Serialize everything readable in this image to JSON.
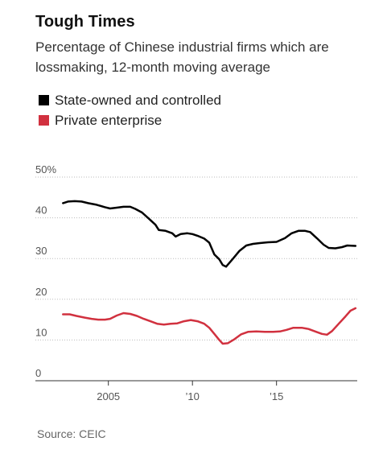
{
  "title": "Tough Times",
  "subtitle": "Percentage of Chinese industrial firms which are lossmaking, 12-month moving average",
  "source": "Source: CEIC",
  "chart_data": {
    "type": "line",
    "title": "Tough Times",
    "subtitle": "Percentage of Chinese industrial firms which are lossmaking, 12-month moving average",
    "xlabel": "",
    "ylabel": "",
    "xlim": [
      2002.0,
      2019.8
    ],
    "ylim": [
      0,
      50
    ],
    "grid": true,
    "legend": "top-left",
    "y_ticks": [
      {
        "value": 50,
        "label": "50%"
      },
      {
        "value": 40,
        "label": "40"
      },
      {
        "value": 30,
        "label": "30"
      },
      {
        "value": 20,
        "label": "20"
      },
      {
        "value": 10,
        "label": "10"
      },
      {
        "value": 0,
        "label": "0"
      }
    ],
    "x_ticks": [
      {
        "value": 2005,
        "label": "2005"
      },
      {
        "value": 2010,
        "label": "’10"
      },
      {
        "value": 2015,
        "label": "’15"
      }
    ],
    "series": [
      {
        "name": "State-owned and controlled",
        "color": "#000000",
        "points": [
          [
            2002.3,
            43.6
          ],
          [
            2002.6,
            44.0
          ],
          [
            2003.0,
            44.1
          ],
          [
            2003.4,
            44.0
          ],
          [
            2003.8,
            43.6
          ],
          [
            2004.3,
            43.2
          ],
          [
            2004.8,
            42.6
          ],
          [
            2005.1,
            42.3
          ],
          [
            2005.5,
            42.5
          ],
          [
            2005.9,
            42.7
          ],
          [
            2006.3,
            42.7
          ],
          [
            2006.6,
            42.2
          ],
          [
            2007.0,
            41.3
          ],
          [
            2007.4,
            39.8
          ],
          [
            2007.8,
            38.3
          ],
          [
            2008.0,
            37.0
          ],
          [
            2008.4,
            36.8
          ],
          [
            2008.8,
            36.2
          ],
          [
            2009.0,
            35.4
          ],
          [
            2009.3,
            36.0
          ],
          [
            2009.7,
            36.2
          ],
          [
            2010.0,
            36.0
          ],
          [
            2010.3,
            35.6
          ],
          [
            2010.7,
            34.9
          ],
          [
            2011.0,
            33.9
          ],
          [
            2011.3,
            31.0
          ],
          [
            2011.6,
            29.8
          ],
          [
            2011.8,
            28.4
          ],
          [
            2012.0,
            28.0
          ],
          [
            2012.4,
            29.9
          ],
          [
            2012.8,
            31.9
          ],
          [
            2013.2,
            33.2
          ],
          [
            2013.6,
            33.6
          ],
          [
            2014.0,
            33.8
          ],
          [
            2014.5,
            34.0
          ],
          [
            2015.0,
            34.1
          ],
          [
            2015.5,
            35.0
          ],
          [
            2015.9,
            36.2
          ],
          [
            2016.3,
            36.8
          ],
          [
            2016.7,
            36.8
          ],
          [
            2017.0,
            36.5
          ],
          [
            2017.4,
            35.0
          ],
          [
            2017.8,
            33.4
          ],
          [
            2018.1,
            32.6
          ],
          [
            2018.5,
            32.5
          ],
          [
            2018.9,
            32.8
          ],
          [
            2019.2,
            33.2
          ],
          [
            2019.7,
            33.1
          ]
        ]
      },
      {
        "name": "Private enterprise",
        "color": "#d1313f",
        "points": [
          [
            2002.3,
            16.3
          ],
          [
            2002.7,
            16.3
          ],
          [
            2003.1,
            15.9
          ],
          [
            2003.6,
            15.5
          ],
          [
            2004.0,
            15.2
          ],
          [
            2004.4,
            15.0
          ],
          [
            2004.8,
            15.0
          ],
          [
            2005.1,
            15.2
          ],
          [
            2005.5,
            16.0
          ],
          [
            2005.9,
            16.6
          ],
          [
            2006.3,
            16.4
          ],
          [
            2006.7,
            15.9
          ],
          [
            2007.1,
            15.2
          ],
          [
            2007.5,
            14.6
          ],
          [
            2007.9,
            14.0
          ],
          [
            2008.3,
            13.8
          ],
          [
            2008.7,
            14.0
          ],
          [
            2009.1,
            14.1
          ],
          [
            2009.5,
            14.6
          ],
          [
            2009.9,
            14.9
          ],
          [
            2010.3,
            14.6
          ],
          [
            2010.7,
            14.0
          ],
          [
            2011.0,
            13.0
          ],
          [
            2011.3,
            11.5
          ],
          [
            2011.6,
            10.0
          ],
          [
            2011.8,
            9.1
          ],
          [
            2012.1,
            9.2
          ],
          [
            2012.5,
            10.2
          ],
          [
            2012.9,
            11.4
          ],
          [
            2013.3,
            12.0
          ],
          [
            2013.8,
            12.1
          ],
          [
            2014.3,
            12.0
          ],
          [
            2014.8,
            12.0
          ],
          [
            2015.2,
            12.1
          ],
          [
            2015.6,
            12.5
          ],
          [
            2016.0,
            13.0
          ],
          [
            2016.5,
            13.0
          ],
          [
            2016.9,
            12.7
          ],
          [
            2017.3,
            12.1
          ],
          [
            2017.7,
            11.5
          ],
          [
            2018.0,
            11.3
          ],
          [
            2018.3,
            12.2
          ],
          [
            2018.7,
            14.0
          ],
          [
            2019.1,
            15.8
          ],
          [
            2019.4,
            17.2
          ],
          [
            2019.7,
            17.8
          ]
        ]
      }
    ]
  }
}
